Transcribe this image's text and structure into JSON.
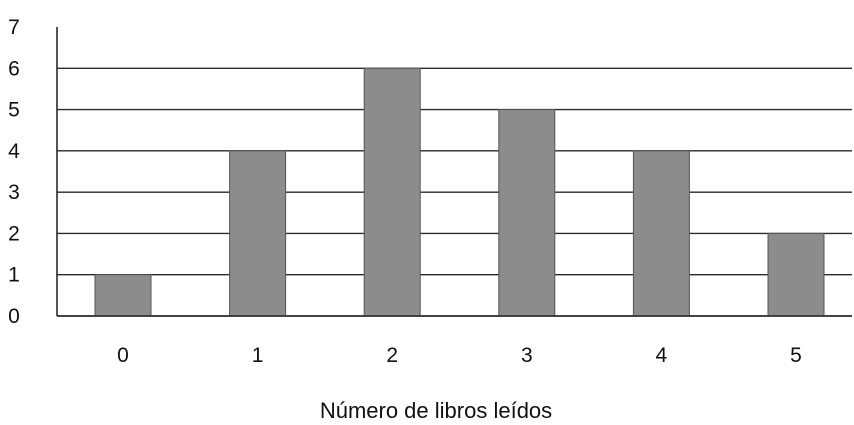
{
  "chart_data": {
    "type": "bar",
    "categories": [
      "0",
      "1",
      "2",
      "3",
      "4",
      "5"
    ],
    "values": [
      1,
      4,
      6,
      5,
      4,
      2
    ],
    "title": "",
    "xlabel": "Número de libros leídos",
    "ylabel": "",
    "ylim": [
      0,
      7
    ],
    "yticks": [
      "0",
      "1",
      "2",
      "3",
      "4",
      "5",
      "6",
      "7"
    ],
    "grid": true,
    "bar_color": "#8c8c8c"
  }
}
